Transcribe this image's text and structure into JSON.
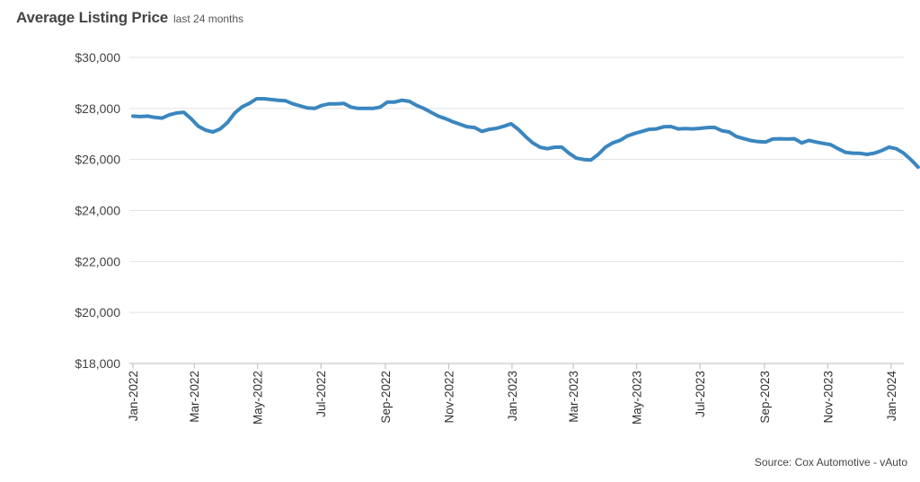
{
  "header": {
    "title": "Average Listing Price",
    "subtitle": "last 24 months"
  },
  "source": "Source: Cox Automotive - vAuto",
  "colors": {
    "line": "#3a86c0",
    "grid": "#e2e2e2",
    "axis": "#bbbbbb"
  },
  "chart_data": {
    "type": "line",
    "title": "Average Listing Price",
    "subtitle": "last 24 months",
    "xlabel": "",
    "ylabel": "",
    "ylim": [
      18000,
      30000
    ],
    "y_ticks": [
      18000,
      20000,
      22000,
      24000,
      26000,
      28000,
      30000
    ],
    "y_tick_labels": [
      "$18,000",
      "$20,000",
      "$22,000",
      "$24,000",
      "$26,000",
      "$28,000",
      "$30,000"
    ],
    "x_tick_labels": [
      "Jan-2022",
      "Mar-2022",
      "May-2022",
      "Jul-2022",
      "Sep-2022",
      "Nov-2022",
      "Jan-2023",
      "Mar-2023",
      "May-2023",
      "Jul-2023",
      "Sep-2023",
      "Nov-2023",
      "Jan-2024"
    ],
    "x_tick_dates": [
      "2022-01-01",
      "2022-03-01",
      "2022-05-01",
      "2022-07-01",
      "2022-09-01",
      "2022-11-01",
      "2023-01-01",
      "2023-03-01",
      "2023-05-01",
      "2023-07-01",
      "2023-09-01",
      "2023-11-01",
      "2024-01-01"
    ],
    "grid": true,
    "series": [
      {
        "color": "#3a86c0",
        "x": [
          "2022-01-01",
          "2022-01-08",
          "2022-01-15",
          "2022-01-22",
          "2022-01-29",
          "2022-02-05",
          "2022-02-12",
          "2022-02-19",
          "2022-02-26",
          "2022-03-05",
          "2022-03-12",
          "2022-03-19",
          "2022-03-26",
          "2022-04-02",
          "2022-04-09",
          "2022-04-16",
          "2022-04-23",
          "2022-04-30",
          "2022-05-07",
          "2022-05-14",
          "2022-05-21",
          "2022-05-28",
          "2022-06-04",
          "2022-06-11",
          "2022-06-18",
          "2022-06-25",
          "2022-07-02",
          "2022-07-09",
          "2022-07-16",
          "2022-07-23",
          "2022-07-30",
          "2022-08-06",
          "2022-08-13",
          "2022-08-20",
          "2022-08-27",
          "2022-09-03",
          "2022-09-10",
          "2022-09-17",
          "2022-09-24",
          "2022-10-01",
          "2022-10-08",
          "2022-10-15",
          "2022-10-22",
          "2022-10-29",
          "2022-11-05",
          "2022-11-12",
          "2022-11-19",
          "2022-11-26",
          "2022-12-03",
          "2022-12-10",
          "2022-12-17",
          "2022-12-24",
          "2022-12-31",
          "2023-01-07",
          "2023-01-14",
          "2023-01-21",
          "2023-01-28",
          "2023-02-04",
          "2023-02-11",
          "2023-02-18",
          "2023-02-25",
          "2023-03-04",
          "2023-03-11",
          "2023-03-18",
          "2023-03-25",
          "2023-04-01",
          "2023-04-08",
          "2023-04-15",
          "2023-04-22",
          "2023-04-29",
          "2023-05-06",
          "2023-05-13",
          "2023-05-20",
          "2023-05-27",
          "2023-06-03",
          "2023-06-10",
          "2023-06-17",
          "2023-06-24",
          "2023-07-01",
          "2023-07-08",
          "2023-07-15",
          "2023-07-22",
          "2023-07-29",
          "2023-08-05",
          "2023-08-12",
          "2023-08-19",
          "2023-08-26",
          "2023-09-02",
          "2023-09-09",
          "2023-09-16",
          "2023-09-23",
          "2023-09-30",
          "2023-10-07",
          "2023-10-14",
          "2023-10-21",
          "2023-10-28",
          "2023-11-04",
          "2023-11-11",
          "2023-11-18",
          "2023-11-25",
          "2023-12-02",
          "2023-12-09",
          "2023-12-16",
          "2023-12-23",
          "2023-12-30",
          "2024-01-06",
          "2024-01-13",
          "2024-01-20",
          "2024-01-27"
        ],
        "values": [
          27700,
          27680,
          27700,
          27650,
          27620,
          27750,
          27820,
          27850,
          27600,
          27300,
          27150,
          27080,
          27200,
          27450,
          27820,
          28060,
          28200,
          28380,
          28380,
          28350,
          28320,
          28300,
          28180,
          28100,
          28020,
          28000,
          28120,
          28180,
          28180,
          28200,
          28050,
          28000,
          28000,
          28000,
          28050,
          28250,
          28250,
          28320,
          28280,
          28120,
          28000,
          27850,
          27700,
          27600,
          27480,
          27380,
          27280,
          27250,
          27100,
          27180,
          27220,
          27300,
          27400,
          27180,
          26900,
          26650,
          26480,
          26420,
          26480,
          26480,
          26240,
          26050,
          26000,
          25980,
          26200,
          26480,
          26650,
          26750,
          26920,
          27020,
          27100,
          27180,
          27200,
          27280,
          27290,
          27200,
          27210,
          27200,
          27220,
          27250,
          27260,
          27130,
          27080,
          26900,
          26820,
          26740,
          26700,
          26680,
          26800,
          26810,
          26800,
          26810,
          26650,
          26750,
          26680,
          26630,
          26580,
          26420,
          26280,
          26250,
          26240,
          26200,
          26250,
          26350,
          26480,
          26420,
          26250,
          26000,
          25700
        ]
      }
    ]
  }
}
